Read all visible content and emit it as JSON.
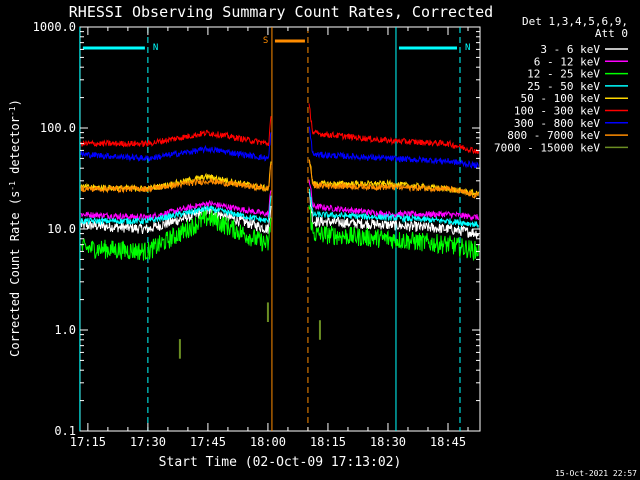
{
  "chart_data": {
    "type": "line",
    "title": "RHESSI Observing Summary Count Rates, Corrected",
    "xlabel": "Start Time (02-Oct-09 17:13:02)",
    "ylabel_main": "Corrected Count Rate (s",
    "ylabel_sup1": "-1",
    "ylabel_mid": " detector",
    "ylabel_sup2": "-1",
    "ylabel_end": ")",
    "yscale": "log",
    "ylim": [
      0.1,
      1000
    ],
    "xlim": [
      "17:13:02",
      "18:53:00"
    ],
    "grid": false,
    "legend_position": "right",
    "legend_header": [
      "Det 1,3,4,5,6,9,",
      "Att 0"
    ],
    "x_ticks": [
      "17:15",
      "17:30",
      "17:45",
      "18:00",
      "18:15",
      "18:30",
      "18:45"
    ],
    "y_ticks": [
      "0.1",
      "1.0",
      "10.0",
      "100.0",
      "1000.0"
    ],
    "footer": "15-Oct-2021 22:57",
    "gap": [
      "18:01",
      "18:10"
    ],
    "series": [
      {
        "name": "3 - 6 keV",
        "color": "#ffffff",
        "values": [
          [
            "17:13",
            11
          ],
          [
            "17:30",
            10
          ],
          [
            "17:45",
            15
          ],
          [
            "18:00",
            10
          ],
          [
            "18:10",
            12
          ],
          [
            "18:30",
            11
          ],
          [
            "18:45",
            10
          ],
          [
            "18:53",
            9
          ]
        ]
      },
      {
        "name": "6 - 12 keV",
        "color": "#ff00ff",
        "values": [
          [
            "17:13",
            14
          ],
          [
            "17:30",
            13
          ],
          [
            "17:45",
            18
          ],
          [
            "18:00",
            14
          ],
          [
            "18:10",
            17
          ],
          [
            "18:30",
            14
          ],
          [
            "18:45",
            14
          ],
          [
            "18:53",
            13
          ]
        ]
      },
      {
        "name": "12 - 25 keV",
        "color": "#00ff00",
        "values": [
          [
            "17:13",
            6.5
          ],
          [
            "17:30",
            6
          ],
          [
            "17:45",
            13
          ],
          [
            "18:00",
            7
          ],
          [
            "18:10",
            9
          ],
          [
            "18:30",
            8
          ],
          [
            "18:45",
            7
          ],
          [
            "18:53",
            6
          ]
        ]
      },
      {
        "name": "25 - 50 keV",
        "color": "#00ffff",
        "values": [
          [
            "17:13",
            12
          ],
          [
            "17:30",
            12
          ],
          [
            "17:45",
            16
          ],
          [
            "18:00",
            12
          ],
          [
            "18:10",
            14
          ],
          [
            "18:30",
            13
          ],
          [
            "18:45",
            12
          ],
          [
            "18:53",
            11
          ]
        ]
      },
      {
        "name": "50 - 100 keV",
        "color": "#ffd700",
        "values": [
          [
            "17:13",
            26
          ],
          [
            "17:30",
            25
          ],
          [
            "17:45",
            33
          ],
          [
            "18:00",
            25
          ],
          [
            "18:10",
            28
          ],
          [
            "18:30",
            28
          ],
          [
            "18:45",
            25
          ],
          [
            "18:53",
            22
          ]
        ]
      },
      {
        "name": "100 - 300 keV",
        "color": "#ff0000",
        "values": [
          [
            "17:13",
            70
          ],
          [
            "17:30",
            70
          ],
          [
            "17:45",
            90
          ],
          [
            "18:00",
            70
          ],
          [
            "18:10",
            90
          ],
          [
            "18:30",
            75
          ],
          [
            "18:45",
            70
          ],
          [
            "18:53",
            58
          ]
        ]
      },
      {
        "name": "300 - 800 keV",
        "color": "#0000ff",
        "values": [
          [
            "17:13",
            55
          ],
          [
            "17:30",
            50
          ],
          [
            "17:45",
            62
          ],
          [
            "18:00",
            50
          ],
          [
            "18:10",
            55
          ],
          [
            "18:30",
            50
          ],
          [
            "18:45",
            47
          ],
          [
            "18:53",
            42
          ]
        ]
      },
      {
        "name": "800 - 7000 keV",
        "color": "#ff8c00",
        "values": [
          [
            "17:13",
            25
          ],
          [
            "17:30",
            25
          ],
          [
            "17:45",
            30
          ],
          [
            "18:00",
            25
          ],
          [
            "18:10",
            27
          ],
          [
            "18:30",
            26
          ],
          [
            "18:45",
            25
          ],
          [
            "18:53",
            21
          ]
        ]
      },
      {
        "name": "7000 - 15000 keV",
        "color": "#6b8e23",
        "values": [
          [
            "17:13",
            null
          ],
          [
            "17:38",
            0.65
          ],
          [
            "18:00",
            1.5
          ],
          [
            "18:13",
            1.0
          ],
          [
            "18:53",
            null
          ]
        ]
      }
    ],
    "annotations": [
      {
        "label": "N",
        "color": "#00ffff",
        "start": "17:13",
        "end": "17:30",
        "kind": "night"
      },
      {
        "label": "N",
        "color": "#00ffff",
        "start": "18:32",
        "end": "18:48",
        "kind": "night"
      },
      {
        "label": "S",
        "color": "#ff8c00",
        "start": "18:01",
        "end": "18:10",
        "kind": "saa"
      }
    ]
  }
}
